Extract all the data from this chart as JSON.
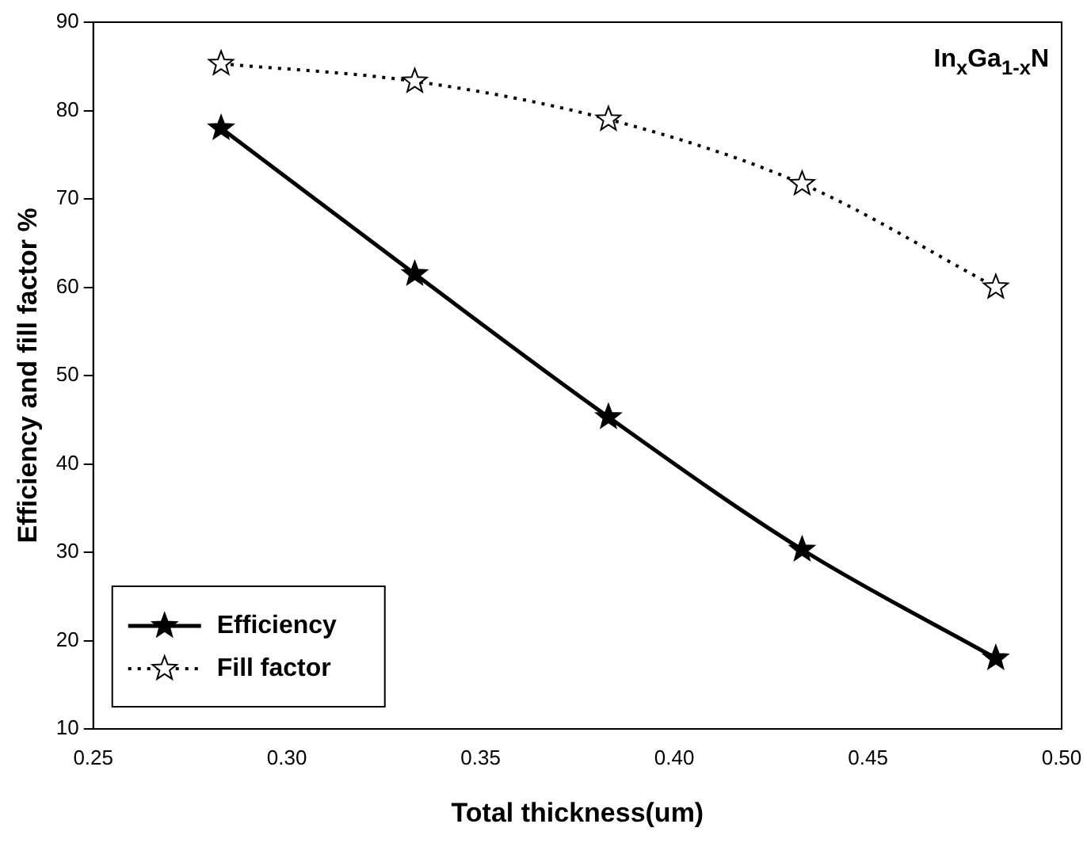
{
  "chart_data": {
    "type": "line",
    "xlabel": "Total thickness(um)",
    "ylabel": "Efficiency and fill factor %",
    "annotations": [
      "In$_{x}$Ga$_{1-x}$N"
    ],
    "x": [
      0.283,
      0.333,
      0.383,
      0.433,
      0.483
    ],
    "series": [
      {
        "name": "Efficiency",
        "color": "#000000",
        "values": [
          78,
          61.5,
          45.3,
          30.3,
          18
        ],
        "line_style": "solid"
      },
      {
        "name": "Fill factor",
        "color": "#000000",
        "values": [
          85.3,
          83.3,
          79,
          71.7,
          60
        ],
        "line_style": "dotted"
      }
    ],
    "xlim": [
      0.25,
      0.5
    ],
    "xticks": [
      {
        "value": 0.25,
        "label": "0.25"
      },
      {
        "value": 0.3,
        "label": "0.30"
      },
      {
        "value": 0.35,
        "label": "0.35"
      },
      {
        "value": 0.4,
        "label": "0.40"
      },
      {
        "value": 0.45,
        "label": "0.45"
      },
      {
        "value": 0.5,
        "label": "0.50"
      }
    ],
    "ylim": [
      10,
      90
    ],
    "yticks": [
      10,
      20,
      30,
      40,
      50,
      60,
      70,
      80,
      90
    ],
    "grid": false,
    "legend": "bottom left",
    "marker": "star"
  }
}
